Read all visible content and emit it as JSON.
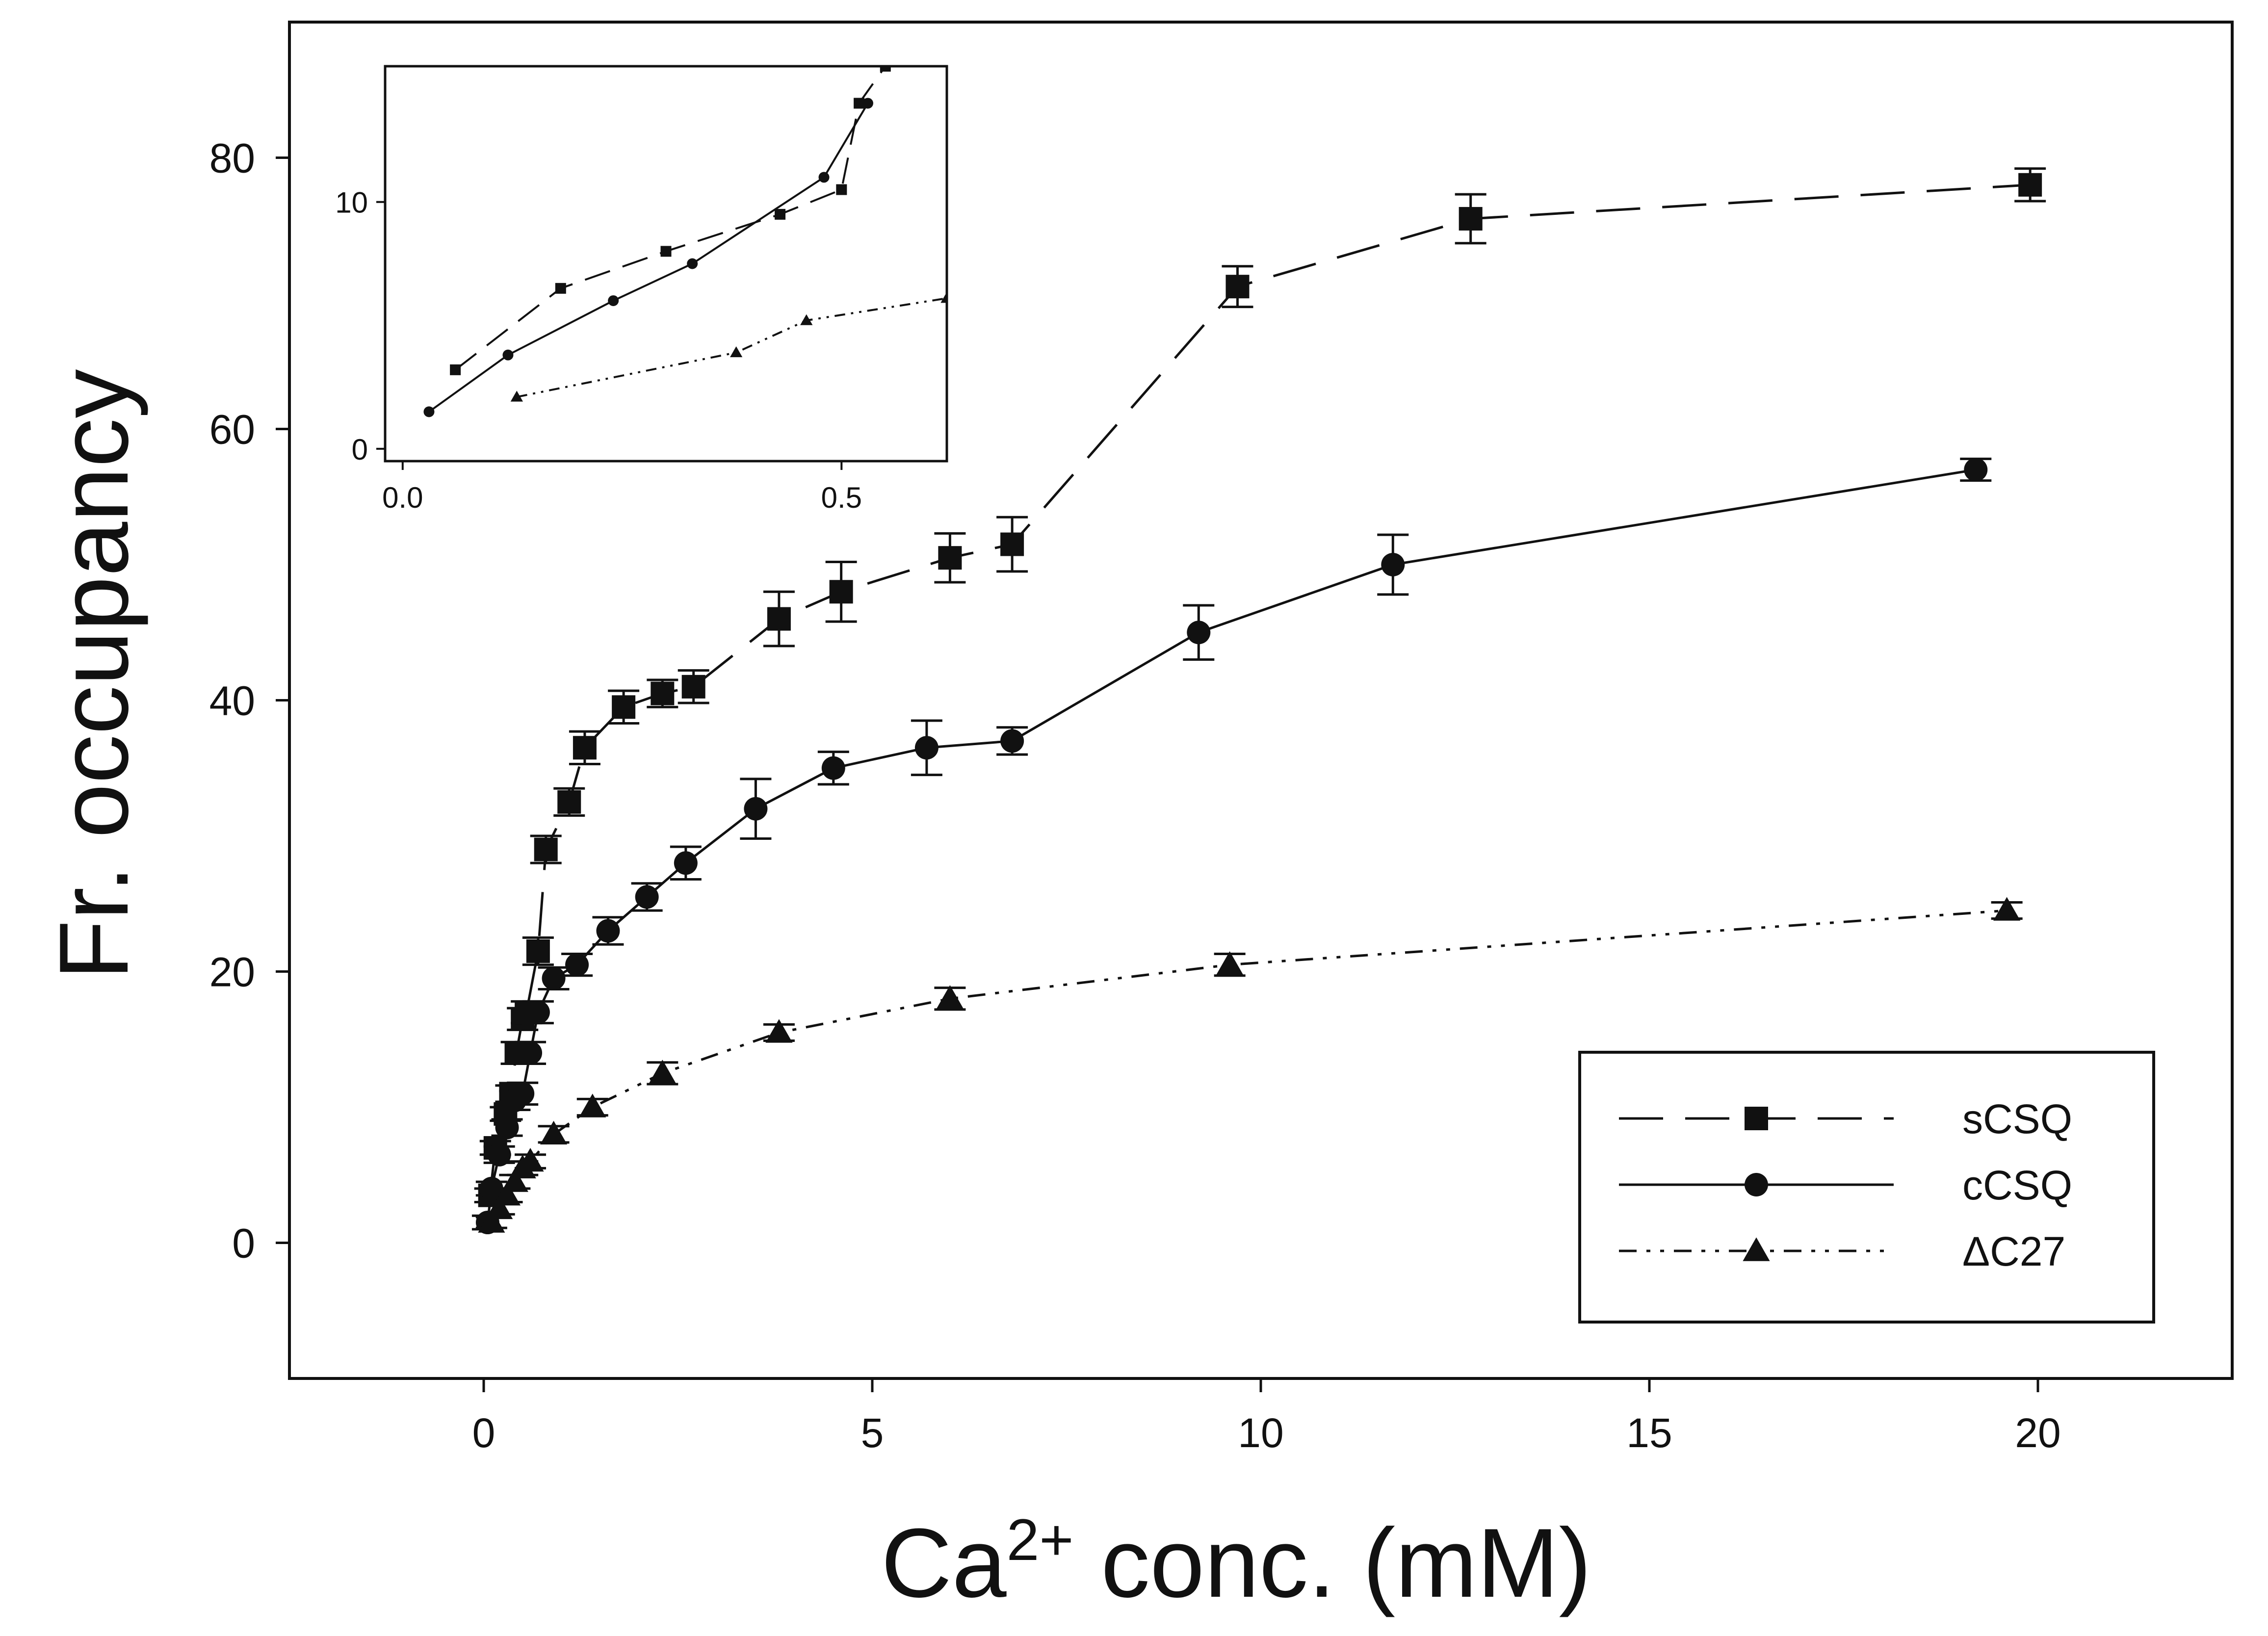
{
  "chart_data": {
    "type": "line",
    "title": "",
    "xlabel": "Ca²⁺ conc. (mM)",
    "ylabel": "Fr. occupancy",
    "xlim": [
      -2.5,
      22.5
    ],
    "ylim": [
      -10,
      90
    ],
    "xticks": [
      0,
      5,
      10,
      15,
      20
    ],
    "yticks": [
      0,
      20,
      40,
      60,
      80
    ],
    "grid": false,
    "legend_position": "bottom-right",
    "series": [
      {
        "name": "sCSQ",
        "marker": "square",
        "line": "long-dash",
        "x": [
          0.08,
          0.15,
          0.28,
          0.35,
          0.42,
          0.5,
          0.55,
          0.7,
          0.8,
          1.1,
          1.3,
          1.8,
          2.3,
          2.7,
          3.8,
          4.6,
          6.0,
          6.8,
          9.7,
          12.7,
          19.9
        ],
        "y": [
          3.5,
          7,
          9.5,
          11,
          14,
          16.5,
          17,
          21.5,
          29,
          32.5,
          36.5,
          39.5,
          40.5,
          41,
          46,
          48,
          50.5,
          51.5,
          70.5,
          75.5,
          78
        ],
        "yerr": [
          0.5,
          0.5,
          0.5,
          0.6,
          0.8,
          0.8,
          0.8,
          1.0,
          1.0,
          1.0,
          1.2,
          1.2,
          1.0,
          1.2,
          2.0,
          2.2,
          1.8,
          2.0,
          1.5,
          1.8,
          1.2
        ]
      },
      {
        "name": "cCSQ",
        "marker": "circle",
        "line": "solid",
        "x": [
          0.05,
          0.1,
          0.2,
          0.3,
          0.4,
          0.5,
          0.6,
          0.7,
          0.9,
          1.2,
          1.6,
          2.1,
          2.6,
          3.5,
          4.5,
          5.7,
          6.8,
          9.2,
          11.7,
          19.2
        ],
        "y": [
          1.5,
          4,
          6.5,
          8.5,
          10.5,
          11,
          14,
          17,
          19.5,
          20.5,
          23,
          25.5,
          28,
          32,
          35,
          36.5,
          37,
          45,
          50,
          57
        ],
        "yerr": [
          0.5,
          0.5,
          0.6,
          0.6,
          0.7,
          0.8,
          0.8,
          0.8,
          0.8,
          0.8,
          1.0,
          1.0,
          1.2,
          2.2,
          1.2,
          2.0,
          1.0,
          2.0,
          2.2,
          0.8
        ]
      },
      {
        "name": "ΔC27",
        "marker": "triangle",
        "line": "dash-dot-dot",
        "x": [
          0.1,
          0.2,
          0.3,
          0.4,
          0.5,
          0.6,
          0.9,
          1.4,
          2.3,
          3.8,
          6.0,
          9.6,
          19.6
        ],
        "y": [
          1.5,
          2.5,
          3.5,
          4.5,
          5.5,
          6,
          8,
          10,
          12.5,
          15.5,
          18,
          20.5,
          24.5
        ],
        "yerr": [
          0.4,
          0.4,
          0.5,
          0.5,
          0.5,
          0.5,
          0.6,
          0.6,
          0.8,
          0.6,
          0.8,
          0.8,
          0.6
        ]
      }
    ],
    "inset": {
      "xlim": [
        -0.02,
        0.62
      ],
      "ylim": [
        -0.5,
        15.5
      ],
      "xticks": [
        0.0,
        0.5
      ],
      "yticks": [
        0,
        10
      ],
      "xtick_labels": [
        "0.0",
        "0.5"
      ],
      "ytick_labels": [
        "0",
        "10"
      ],
      "series": [
        {
          "name": "sCSQ",
          "marker": "square",
          "x": [
            0.06,
            0.18,
            0.3,
            0.43,
            0.5,
            0.52,
            0.55
          ],
          "y": [
            3.2,
            6.5,
            8.0,
            9.5,
            10.5,
            14.0,
            15.5
          ]
        },
        {
          "name": "cCSQ",
          "marker": "circle",
          "x": [
            0.03,
            0.12,
            0.24,
            0.33,
            0.48,
            0.53
          ],
          "y": [
            1.5,
            3.8,
            6.0,
            7.5,
            11.0,
            14.0
          ]
        },
        {
          "name": "ΔC27",
          "marker": "triangle",
          "x": [
            0.13,
            0.38,
            0.46,
            0.62
          ],
          "y": [
            2.1,
            3.9,
            5.2,
            6.1
          ]
        }
      ]
    }
  }
}
